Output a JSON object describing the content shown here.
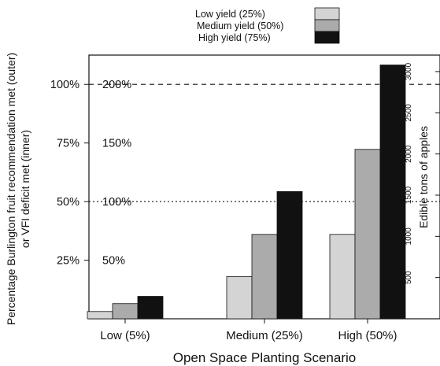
{
  "chart_data": {
    "type": "bar",
    "xlabel": "Open Space Planting Scenario",
    "ylabel_lines": [
      "Percentage Burlington fruit recommendation met (outer)",
      "or VFI deficit met (inner)"
    ],
    "right_ylabel": "Edible tons of apples",
    "categories": [
      "Low (5%)",
      "Medium (25%)",
      "High (50%)"
    ],
    "series": [
      {
        "name": "Low yield (25%)",
        "color": "#d4d4d4",
        "values": [
          1.1,
          6.4,
          12.8
        ]
      },
      {
        "name": "Medium yield (50%)",
        "color": "#ababab",
        "values": [
          2.3,
          12.8,
          25.7
        ]
      },
      {
        "name": "High yield (75%)",
        "color": "#111111",
        "values": [
          3.4,
          19.3,
          38.5
        ]
      }
    ],
    "ylim": [
      0,
      40
    ],
    "outer_axis": {
      "ticks": [
        25,
        50,
        75,
        100
      ],
      "labels": [
        "25%",
        "50%",
        "75%",
        "100%"
      ],
      "range": [
        0,
        112.5
      ]
    },
    "inner_labels": {
      "values": [
        50,
        100,
        150,
        200
      ],
      "labels": [
        "50%",
        "100%",
        "150%",
        "200%"
      ],
      "range": [
        0,
        225
      ]
    },
    "right_axis": {
      "ticks": [
        500,
        1000,
        1500,
        2000,
        2500,
        3000
      ],
      "labels": [
        "500",
        "1000",
        "1500",
        "2000",
        "2500",
        "3000"
      ],
      "range": [
        0,
        3200
      ]
    },
    "reference_lines": [
      {
        "outer_value": 100,
        "style": "dashed"
      },
      {
        "outer_value": 50,
        "style": "dotted"
      }
    ],
    "legend_position": "top"
  }
}
